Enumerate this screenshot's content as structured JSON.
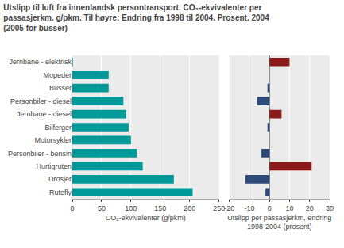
{
  "chart_data": [
    {
      "type": "bar",
      "orientation": "horizontal",
      "title": "Utslipp til luft fra innenlandsk persontransport. CO₂-ekvivalenter per\npassasjerkm. g/pkm. Til høyre: Endring fra 1998 til 2004. Prosent. 2004\n(2005 for busser)",
      "categories": [
        "Jernbane - elektrisk",
        "Mopeder",
        "Busser",
        "Personbiler - diesel",
        "Jernbane - diesel",
        "Bilferger",
        "Motorsykler",
        "Personbiler - bensin",
        "Hurtigruten",
        "Drosjer",
        "Rutefly"
      ],
      "values": [
        1,
        62,
        62,
        87,
        92,
        96,
        100,
        110,
        120,
        173,
        205
      ],
      "color": "#009999",
      "xlabel": "CO₂-ekvivalenter (g/pkm)",
      "xlim": [
        0,
        250
      ],
      "xticks": [
        0,
        50,
        100,
        150,
        200,
        250
      ],
      "grid": true
    },
    {
      "type": "bar",
      "orientation": "horizontal",
      "categories": [
        "Jernbane - elektrisk",
        "Mopeder",
        "Busser",
        "Personbiler - diesel",
        "Jernbane - diesel",
        "Bilferger",
        "Motorsykler",
        "Personbiler - bensin",
        "Hurtigruten",
        "Drosjer",
        "Rutefly"
      ],
      "values": [
        10,
        0,
        -1,
        -6,
        6,
        -1,
        0,
        -4,
        21,
        -12,
        -2
      ],
      "colors": [
        "#8b1a1a",
        "#2e4a7a",
        "#2e4a7a",
        "#2e4a7a",
        "#8b1a1a",
        "#2e4a7a",
        "#2e4a7a",
        "#2e4a7a",
        "#8b1a1a",
        "#2e4a7a",
        "#2e4a7a"
      ],
      "xlabel": "Utslipp per passasjerkm, endring\n1998-2004 (prosent)",
      "xlim": [
        -20,
        30
      ],
      "xticks": [
        -20,
        -10,
        0,
        10,
        20,
        30
      ],
      "grid": true,
      "tick_labels": "x"
    }
  ]
}
